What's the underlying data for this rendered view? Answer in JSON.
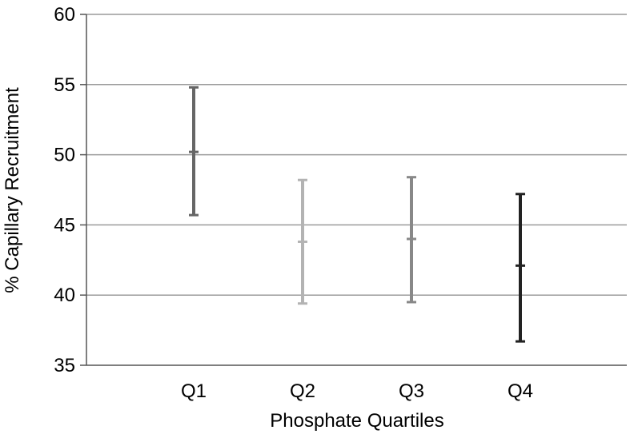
{
  "chart_data": {
    "type": "errorbar",
    "title": "",
    "xlabel": "Phosphate Quartiles",
    "ylabel": "% Capillary Recruitment",
    "ylim": [
      35,
      60
    ],
    "yticks": [
      35,
      40,
      45,
      50,
      55,
      60
    ],
    "grid": true,
    "legend": "none",
    "categories": [
      "Q1",
      "Q2",
      "Q3",
      "Q4"
    ],
    "series": [
      {
        "points": [
          {
            "category": "Q1",
            "mean": 50.2,
            "upper": 54.8,
            "lower": 45.7,
            "color": "#666666"
          },
          {
            "category": "Q2",
            "mean": 43.8,
            "upper": 48.2,
            "lower": 39.4,
            "color": "#b3b3b3"
          },
          {
            "category": "Q3",
            "mean": 44.0,
            "upper": 48.4,
            "lower": 39.5,
            "color": "#888888"
          },
          {
            "category": "Q4",
            "mean": 42.1,
            "upper": 47.2,
            "lower": 36.7,
            "color": "#222222"
          }
        ]
      }
    ],
    "colors": {
      "gridline": "#9a9a9a",
      "axis": "#555555"
    }
  }
}
